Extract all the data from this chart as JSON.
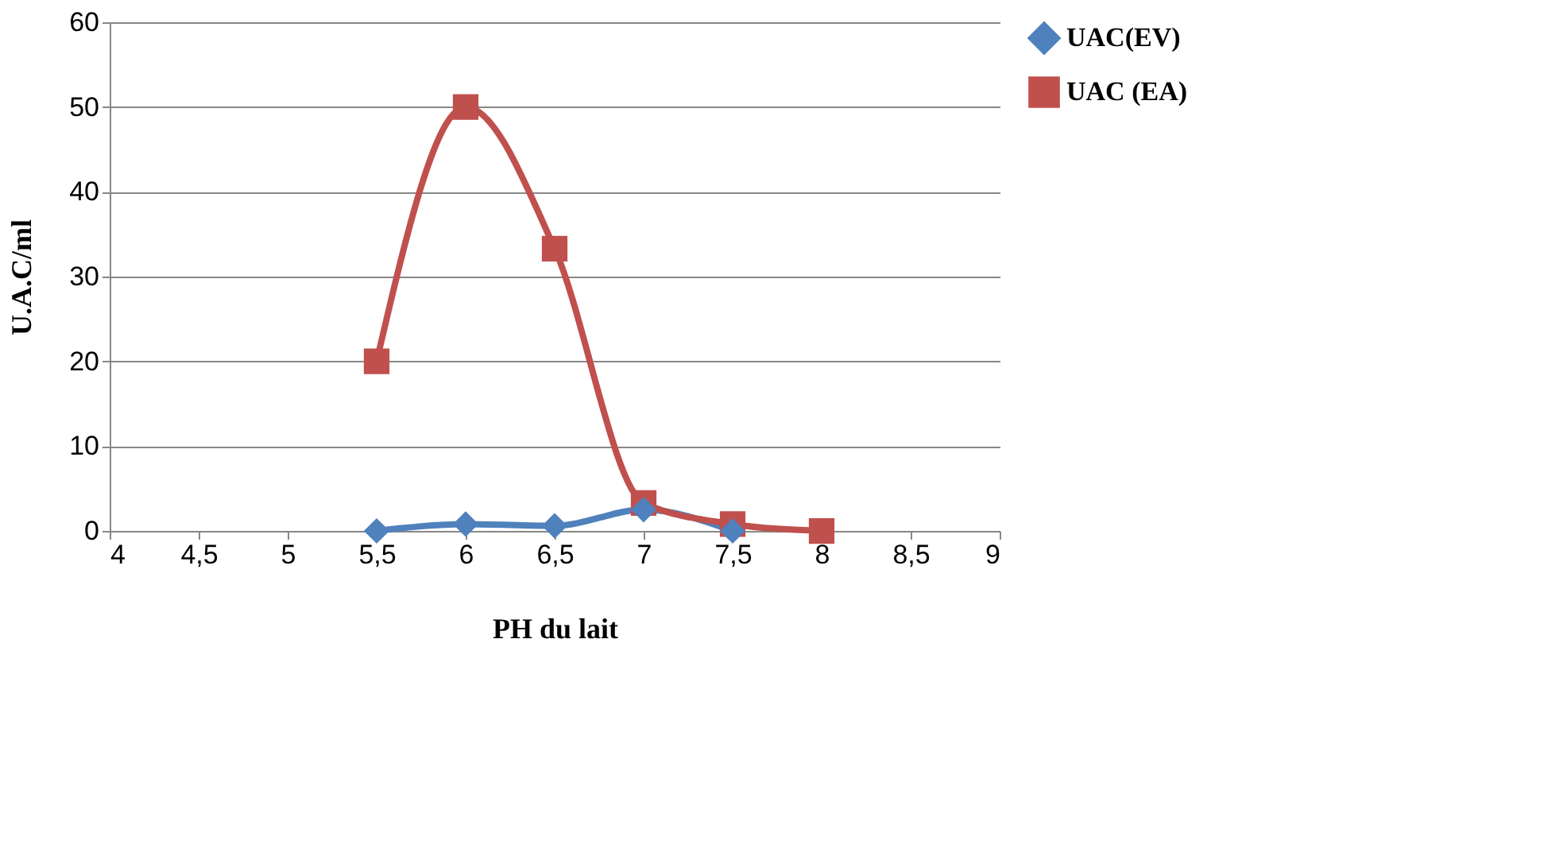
{
  "chart_data": {
    "type": "line",
    "xlabel": "PH du lait",
    "ylabel": "U.A.C/ml",
    "xlim": [
      4,
      9
    ],
    "xticks": [
      {
        "value": 4,
        "label": "4"
      },
      {
        "value": 4.5,
        "label": "4,5"
      },
      {
        "value": 5,
        "label": "5"
      },
      {
        "value": 5.5,
        "label": "5,5"
      },
      {
        "value": 6,
        "label": "6"
      },
      {
        "value": 6.5,
        "label": "6,5"
      },
      {
        "value": 7,
        "label": "7"
      },
      {
        "value": 7.5,
        "label": "7,5"
      },
      {
        "value": 8,
        "label": "8"
      },
      {
        "value": 8.5,
        "label": "8,5"
      },
      {
        "value": 9,
        "label": "9"
      }
    ],
    "ylim": [
      0,
      60
    ],
    "yticks": [
      0,
      10,
      20,
      30,
      40,
      50,
      60
    ],
    "grid": "y",
    "legend": "right",
    "line_style": "solid",
    "series": [
      {
        "name": "UAC(EV)",
        "color": "#4f81bd",
        "marker": "diamond",
        "x": [
          5.5,
          6,
          6.5,
          7,
          7.5
        ],
        "values": [
          0,
          0.8,
          0.6,
          2.5,
          0
        ]
      },
      {
        "name": "UAC (EA)",
        "color": "#c0504d",
        "marker": "square",
        "x": [
          5.5,
          6,
          6.5,
          7,
          7.5,
          8
        ],
        "values": [
          20,
          50,
          33.3,
          3.3,
          0.8,
          0
        ]
      }
    ]
  }
}
